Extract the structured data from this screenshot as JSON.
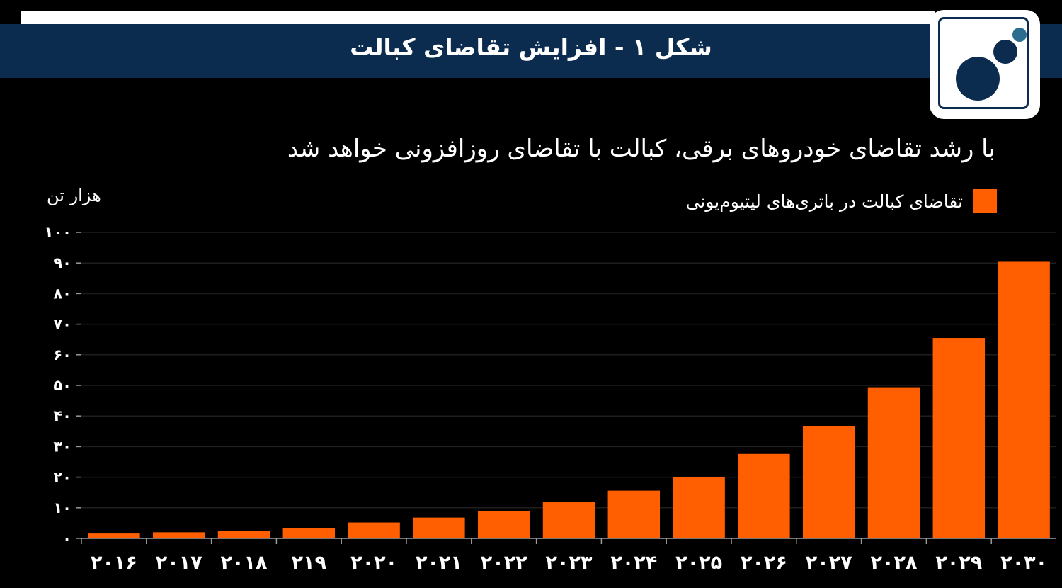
{
  "header": {
    "title": "شکل ۱ - افزایش تقاضای کبالت"
  },
  "logo": {
    "icon": "logo-circles-icon"
  },
  "colors": {
    "header_bg": "#0c2c4f",
    "background": "#000000",
    "bar": "#ff5f00",
    "text": "#ffffff",
    "grid": "#1e1e1e"
  },
  "chart_data": {
    "type": "bar",
    "title": "با رشد تقاضای خودروهای برقی، کبالت با تقاضای روزافزونی خواهد شد",
    "ylabel": "هزار تن",
    "xlabel": "",
    "legend": "top-right",
    "grid": true,
    "ylim": [
      0,
      100
    ],
    "yticks": [
      0,
      10,
      20,
      30,
      40,
      50,
      60,
      70,
      80,
      90,
      100
    ],
    "ytick_labels": [
      "۰",
      "۱۰",
      "۲۰",
      "۳۰",
      "۴۰",
      "۵۰",
      "۶۰",
      "۷۰",
      "۸۰",
      "۹۰",
      "۱۰۰"
    ],
    "categories": [
      "۲۰۱۶",
      "۲۰۱۷",
      "۲۰۱۸",
      "۲۱۹",
      "۲۰۲۰",
      "۲۰۲۱",
      "۲۰۲۲",
      "۲۰۲۳",
      "۲۰۲۴",
      "۲۰۲۵",
      "۲۰۲۶",
      "۲۰۲۷",
      "۲۰۲۸",
      "۲۰۲۹",
      "۲۰۳۰"
    ],
    "series": [
      {
        "name": "تقاضای کبالت در باتری‌های لیتیوم‌یونی",
        "values": [
          1.6,
          2.0,
          2.5,
          3.4,
          5.2,
          6.8,
          8.9,
          11.9,
          15.6,
          20.1,
          27.6,
          36.8,
          49.4,
          65.5,
          90.4
        ]
      }
    ]
  }
}
